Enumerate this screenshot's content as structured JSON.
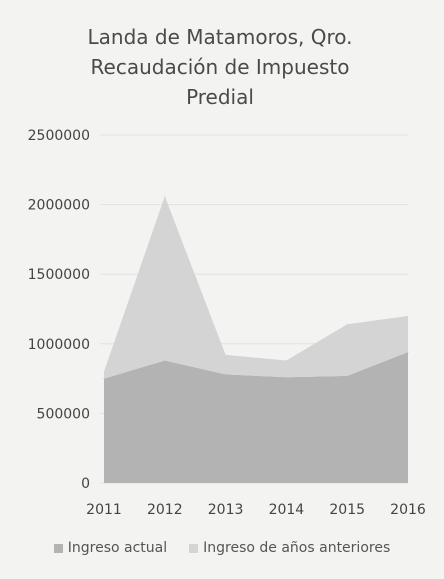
{
  "chart_data": {
    "type": "area",
    "stacked": true,
    "title_lines": [
      "Landa de Matamoros, Qro.",
      "Recaudación de Impuesto",
      "Predial"
    ],
    "categories": [
      "2011",
      "2012",
      "2013",
      "2014",
      "2015",
      "2016"
    ],
    "series": [
      {
        "name": "Ingreso actual",
        "values": [
          750000,
          880000,
          780000,
          760000,
          770000,
          940000
        ],
        "color": "#b3b3b3"
      },
      {
        "name": "Ingreso de años anteriores",
        "values": [
          50000,
          1180000,
          140000,
          120000,
          370000,
          260000
        ],
        "color": "#d4d4d4"
      }
    ],
    "ylim": [
      0,
      2500000
    ],
    "yticks": [
      "0",
      "500000",
      "1000000",
      "1500000",
      "2000000",
      "2500000"
    ],
    "ytick_values": [
      0,
      500000,
      1000000,
      1500000,
      2000000,
      2500000
    ],
    "grid": true,
    "legend_position": "bottom"
  }
}
